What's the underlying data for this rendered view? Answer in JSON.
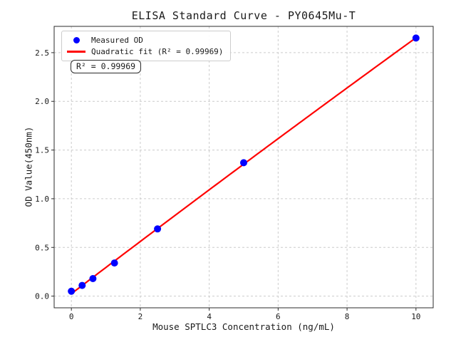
{
  "title": "ELISA Standard Curve - PY0645Mu-T",
  "legend": {
    "items": [
      {
        "label": "Measured OD",
        "marker": "dot",
        "color": "#0000ff"
      },
      {
        "label": "Quadratic fit (R² = 0.99969)",
        "marker": "line",
        "color": "#ff0000"
      }
    ]
  },
  "annotation": {
    "text": "R² = 0.99969"
  },
  "chart_data": {
    "type": "scatter",
    "title": "ELISA Standard Curve - PY0645Mu-T",
    "xlabel": "Mouse SPTLC3 Concentration (ng/mL)",
    "ylabel": "OD Value(450nm)",
    "xlim": [
      -0.5,
      10.5
    ],
    "ylim": [
      -0.12,
      2.77
    ],
    "xticks": [
      0,
      2,
      4,
      6,
      8,
      10
    ],
    "yticks": [
      0,
      0.5,
      1,
      1.5,
      2,
      2.5
    ],
    "grid": true,
    "grid_color": "#cccccc",
    "axis_color": "#2b2b2b",
    "tick_label_color": "#1a1a1a",
    "legend_position": "upper left",
    "series": [
      {
        "name": "Measured OD",
        "type": "scatter",
        "color": "#0000ff",
        "x": [
          0,
          0.3125,
          0.625,
          1.25,
          2.5,
          5,
          10
        ],
        "y": [
          0.05,
          0.11,
          0.18,
          0.34,
          0.69,
          1.37,
          2.65
        ]
      },
      {
        "name": "Quadratic fit",
        "type": "line",
        "color": "#ff0000",
        "fit": "quadratic",
        "fit_of_series": 0,
        "r_squared": 0.99969,
        "x_range": [
          0,
          10
        ]
      }
    ]
  }
}
